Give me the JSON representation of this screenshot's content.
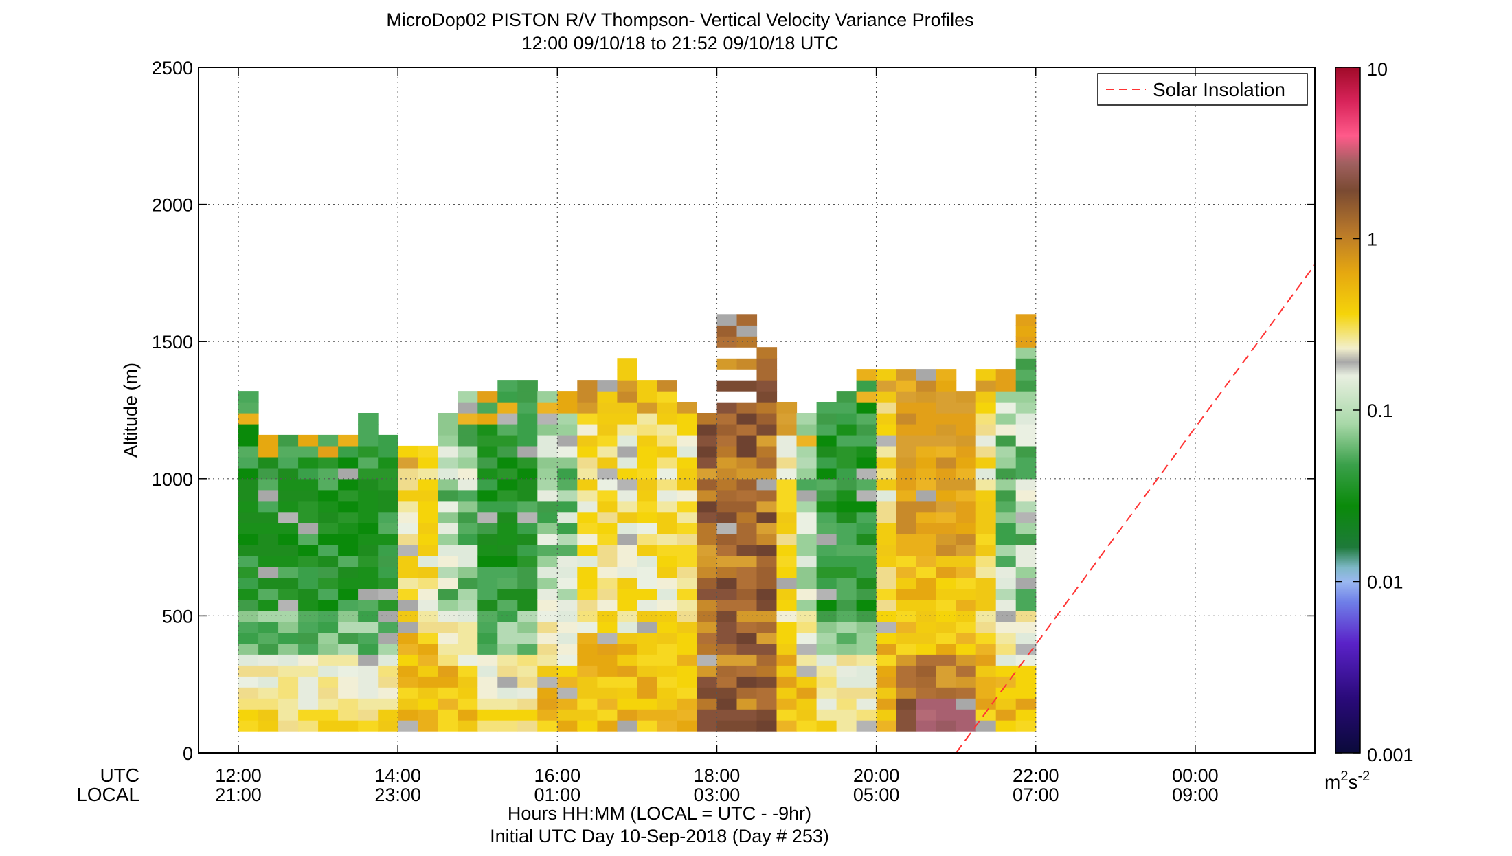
{
  "chart_data": {
    "type": "heatmap",
    "title": "MicroDop02 PISTON R/V Thompson- Vertical Velocity Variance Profiles",
    "subtitle": "12:00 09/10/18 to 21:52 09/10/18  UTC",
    "ylabel": "Altitude (m)",
    "xlabel": "Hours HH:MM  (LOCAL = UTC - -9hr)",
    "xlabel2": "Initial UTC Day 10-Sep-2018 (Day # 253)",
    "x_row_labels": {
      "utc": "UTC",
      "local": "LOCAL"
    },
    "x_ticks_hours": [
      12,
      14,
      16,
      18,
      20,
      22,
      24
    ],
    "x_ticks_utc": [
      "12:00",
      "14:00",
      "16:00",
      "18:00",
      "20:00",
      "22:00",
      "00:00"
    ],
    "x_ticks_local": [
      "21:00",
      "23:00",
      "01:00",
      "03:00",
      "05:00",
      "07:00",
      "09:00"
    ],
    "xlim_hours": [
      11.5,
      25.5
    ],
    "ylim": [
      0,
      2500
    ],
    "y_ticks": [
      "0",
      "500",
      "1000",
      "1500",
      "2000",
      "2500"
    ],
    "grid": true,
    "legend": {
      "label": "Solar Insolation",
      "placement": "top-right"
    },
    "colorbar": {
      "scale": "log",
      "range": [
        0.001,
        10
      ],
      "tick_labels": [
        "0.001",
        "0.01",
        "0.1",
        "1",
        "10"
      ],
      "unit_base": "m",
      "unit_exp_1": "2",
      "unit_mid": "s",
      "unit_exp_2": "-2"
    },
    "solar_insolation_line": {
      "x_hours": [
        21.0,
        25.5
      ],
      "y": [
        0,
        1780
      ],
      "color": "#ff3333"
    },
    "data_extent": {
      "x_hours": [
        12.0,
        21.87
      ],
      "y": [
        80,
        1600
      ]
    },
    "columns": [
      {
        "t": 12.0,
        "top": 1300,
        "profile": "green"
      },
      {
        "t": 12.25,
        "top": 1150,
        "profile": "green"
      },
      {
        "t": 12.5,
        "top": 1150,
        "profile": "green"
      },
      {
        "t": 12.75,
        "top": 1150,
        "profile": "green"
      },
      {
        "t": 13.0,
        "top": 1150,
        "profile": "green"
      },
      {
        "t": 13.25,
        "top": 1150,
        "profile": "green"
      },
      {
        "t": 13.5,
        "top": 1210,
        "profile": "green"
      },
      {
        "t": 13.75,
        "top": 1150,
        "profile": "green"
      },
      {
        "t": 14.0,
        "top": 1120,
        "profile": "yellow"
      },
      {
        "t": 14.25,
        "top": 1120,
        "profile": "yellow"
      },
      {
        "t": 14.5,
        "top": 1210,
        "profile": "mixed"
      },
      {
        "t": 14.75,
        "top": 1300,
        "profile": "mixed"
      },
      {
        "t": 15.0,
        "top": 1300,
        "profile": "green"
      },
      {
        "t": 15.25,
        "top": 1340,
        "profile": "green"
      },
      {
        "t": 15.5,
        "top": 1340,
        "profile": "green"
      },
      {
        "t": 15.75,
        "top": 1300,
        "profile": "mixed"
      },
      {
        "t": 16.0,
        "top": 1300,
        "profile": "mixed"
      },
      {
        "t": 16.25,
        "top": 1340,
        "profile": "yellow"
      },
      {
        "t": 16.5,
        "top": 1340,
        "profile": "yellow"
      },
      {
        "t": 16.75,
        "top": 1410,
        "profile": "yellow"
      },
      {
        "t": 17.0,
        "top": 1340,
        "profile": "yellow"
      },
      {
        "t": 17.25,
        "top": 1340,
        "profile": "yellow"
      },
      {
        "t": 17.5,
        "top": 1270,
        "profile": "yellow"
      },
      {
        "t": 17.75,
        "top": 1210,
        "profile": "brown"
      },
      {
        "t": 18.0,
        "top": 1580,
        "profile": "brown"
      },
      {
        "t": 18.25,
        "top": 1580,
        "profile": "brown"
      },
      {
        "t": 18.5,
        "top": 1480,
        "profile": "brown"
      },
      {
        "t": 18.75,
        "top": 1270,
        "profile": "yellow"
      },
      {
        "t": 19.0,
        "top": 1210,
        "profile": "mixed"
      },
      {
        "t": 19.25,
        "top": 1270,
        "profile": "green"
      },
      {
        "t": 19.5,
        "top": 1300,
        "profile": "green"
      },
      {
        "t": 19.75,
        "top": 1380,
        "profile": "green"
      },
      {
        "t": 20.0,
        "top": 1380,
        "profile": "yellow"
      },
      {
        "t": 20.25,
        "top": 1380,
        "profile": "orange"
      },
      {
        "t": 20.5,
        "top": 1380,
        "profile": "orange"
      },
      {
        "t": 20.75,
        "top": 1380,
        "profile": "orange"
      },
      {
        "t": 21.0,
        "top": 1300,
        "profile": "orange"
      },
      {
        "t": 21.25,
        "top": 1380,
        "profile": "yellow"
      },
      {
        "t": 21.5,
        "top": 1380,
        "profile": "mixed"
      },
      {
        "t": 21.75,
        "top": 1600,
        "profile": "mixed"
      }
    ]
  }
}
